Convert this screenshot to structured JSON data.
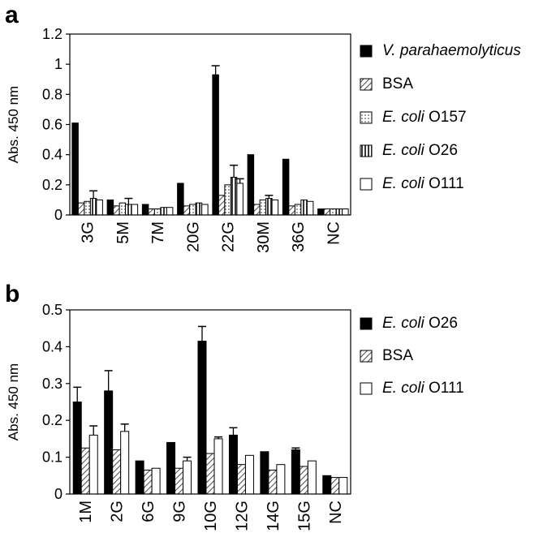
{
  "panels": {
    "a": {
      "letter": "a"
    },
    "b": {
      "letter": "b"
    }
  },
  "chart_data": [
    {
      "type": "bar",
      "panel": "a",
      "ylabel": "Abs. 450 nm",
      "xlabel": "",
      "ylim": [
        0,
        1.2
      ],
      "yticks": [
        "0",
        "0.2",
        "0.4",
        "0.6",
        "0.8",
        "1",
        "1.2"
      ],
      "categories": [
        "3G",
        "5M",
        "7M",
        "20G",
        "22G",
        "30M",
        "36G",
        "NC"
      ],
      "legend_position": "right",
      "series": [
        {
          "name": "V. parahaemolyticus",
          "legend_italic": "V. parahaemolyticus",
          "legend_rest": "",
          "pattern": "solid",
          "values": [
            0.61,
            0.1,
            0.07,
            0.21,
            0.93,
            0.4,
            0.37,
            0.04
          ],
          "errors": [
            0.0,
            0.0,
            0.0,
            0.0,
            0.06,
            0.0,
            0.0,
            0.0
          ]
        },
        {
          "name": "BSA",
          "legend_italic": "",
          "legend_rest": "BSA",
          "pattern": "hatch",
          "values": [
            0.08,
            0.06,
            0.04,
            0.06,
            0.13,
            0.07,
            0.06,
            0.04
          ],
          "errors": [
            0.0,
            0.0,
            0.0,
            0.0,
            0.0,
            0.0,
            0.0,
            0.0
          ]
        },
        {
          "name": "E. coli O157",
          "legend_italic": "E. coli",
          "legend_rest": " O157",
          "pattern": "dots",
          "values": [
            0.09,
            0.08,
            0.04,
            0.07,
            0.2,
            0.1,
            0.07,
            0.04
          ],
          "errors": [
            0.0,
            0.0,
            0.0,
            0.0,
            0.0,
            0.0,
            0.0,
            0.0
          ]
        },
        {
          "name": "E. coli O26",
          "legend_italic": "E. coli",
          "legend_rest": " O26",
          "pattern": "vlines",
          "values": [
            0.11,
            0.07,
            0.05,
            0.08,
            0.25,
            0.11,
            0.1,
            0.04
          ],
          "errors": [
            0.05,
            0.04,
            0.0,
            0.0,
            0.08,
            0.02,
            0.0,
            0.0
          ]
        },
        {
          "name": "E. coli O111",
          "legend_italic": "E. coli",
          "legend_rest": " O111",
          "pattern": "white",
          "values": [
            0.1,
            0.07,
            0.05,
            0.07,
            0.21,
            0.1,
            0.09,
            0.04
          ],
          "errors": [
            0.0,
            0.0,
            0.0,
            0.0,
            0.03,
            0.0,
            0.0,
            0.0
          ]
        }
      ]
    },
    {
      "type": "bar",
      "panel": "b",
      "ylabel": "Abs. 450 nm",
      "xlabel": "",
      "ylim": [
        0,
        0.5
      ],
      "yticks": [
        "0",
        "0.1",
        "0.2",
        "0.3",
        "0.4",
        "0.5"
      ],
      "categories": [
        "1M",
        "2G",
        "6G",
        "9G",
        "10G",
        "12G",
        "14G",
        "15G",
        "NC"
      ],
      "legend_position": "right",
      "series": [
        {
          "name": "E. coli O26",
          "legend_italic": "E. coli",
          "legend_rest": " O26",
          "pattern": "solid",
          "values": [
            0.25,
            0.28,
            0.09,
            0.14,
            0.415,
            0.16,
            0.115,
            0.12,
            0.05
          ],
          "errors": [
            0.04,
            0.055,
            0.0,
            0.0,
            0.04,
            0.02,
            0.0,
            0.005,
            0.0
          ]
        },
        {
          "name": "BSA",
          "legend_italic": "",
          "legend_rest": "BSA",
          "pattern": "hatch",
          "values": [
            0.125,
            0.12,
            0.065,
            0.07,
            0.11,
            0.08,
            0.065,
            0.075,
            0.045
          ],
          "errors": [
            0.0,
            0.0,
            0.0,
            0.0,
            0.0,
            0.0,
            0.0,
            0.0,
            0.0
          ]
        },
        {
          "name": "E. coli O111",
          "legend_italic": "E. coli",
          "legend_rest": " O111",
          "pattern": "white",
          "values": [
            0.16,
            0.17,
            0.07,
            0.09,
            0.15,
            0.105,
            0.08,
            0.09,
            0.045
          ],
          "errors": [
            0.025,
            0.02,
            0.0,
            0.01,
            0.005,
            0.0,
            0.0,
            0.0,
            0.0
          ]
        }
      ]
    }
  ]
}
